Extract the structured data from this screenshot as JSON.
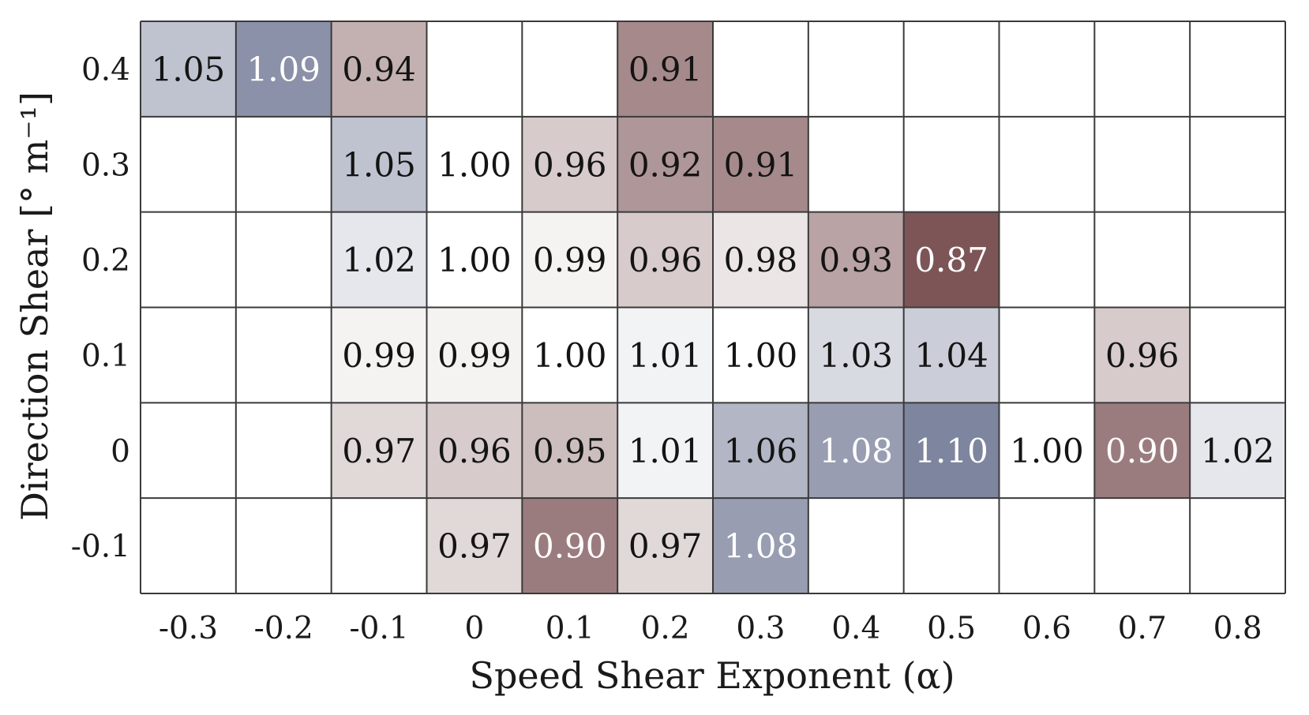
{
  "chart_data": {
    "type": "heatmap",
    "xlabel": "Speed Shear Exponent (α)",
    "ylabel": "Direction Shear [° m⁻¹]",
    "x_ticks": [
      "-0.3",
      "-0.2",
      "-0.1",
      "0",
      "0.1",
      "0.2",
      "0.3",
      "0.4",
      "0.5",
      "0.6",
      "0.7",
      "0.8"
    ],
    "y_ticks": [
      "0.4",
      "0.3",
      "0.2",
      "0.1",
      "0",
      "-0.1"
    ],
    "values": [
      [
        1.05,
        1.09,
        0.94,
        null,
        null,
        0.91,
        null,
        null,
        null,
        null,
        null,
        null
      ],
      [
        null,
        null,
        1.05,
        1.0,
        0.96,
        0.92,
        0.91,
        null,
        null,
        null,
        null,
        null
      ],
      [
        null,
        null,
        1.02,
        1.0,
        0.99,
        0.96,
        0.98,
        0.93,
        0.87,
        null,
        null,
        null
      ],
      [
        null,
        null,
        0.99,
        0.99,
        1.0,
        1.01,
        1.0,
        1.03,
        1.04,
        null,
        0.96,
        null
      ],
      [
        null,
        null,
        0.97,
        0.96,
        0.95,
        1.01,
        1.06,
        1.08,
        1.1,
        1.0,
        0.9,
        1.02
      ],
      [
        null,
        null,
        null,
        0.97,
        0.9,
        0.97,
        1.08,
        null,
        null,
        null,
        null,
        null
      ]
    ],
    "colormap": {
      "low": "#7d5557",
      "mid": "#ffffff",
      "high": "#7e859e",
      "range": [
        0.87,
        1.1
      ],
      "center": 1.0
    },
    "grid": true,
    "legend": "none"
  }
}
